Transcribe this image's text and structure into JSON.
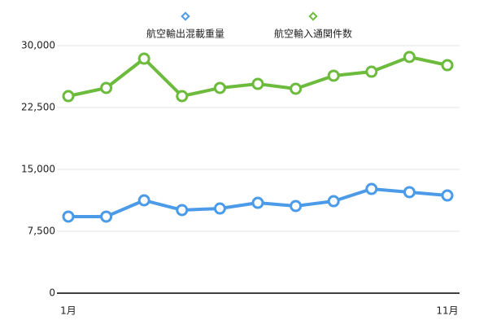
{
  "chart_data": {
    "type": "line",
    "categories": [
      "1月",
      null,
      null,
      null,
      null,
      null,
      null,
      null,
      null,
      null,
      "11月"
    ],
    "series": [
      {
        "name": "航空輸出混載重量",
        "color": "#4b9be8",
        "values": [
          9280,
          9280,
          11250,
          10070,
          10260,
          10950,
          10560,
          11150,
          12630,
          12240,
          11840
        ]
      },
      {
        "name": "航空輸入通関件数",
        "color": "#6cbb3c",
        "values": [
          23880,
          24870,
          28420,
          23880,
          24870,
          25360,
          24770,
          26350,
          26840,
          28620,
          27630
        ]
      }
    ],
    "ylim": [
      0,
      30000
    ],
    "yticks": [
      0,
      {
        "value": 7500,
        "label": "7,500"
      },
      {
        "value": 15000,
        "label": "15,000"
      },
      {
        "value": 22500,
        "label": "22,500"
      },
      {
        "value": 30000,
        "label": "30,000"
      }
    ],
    "grid": true,
    "legend": "top"
  }
}
